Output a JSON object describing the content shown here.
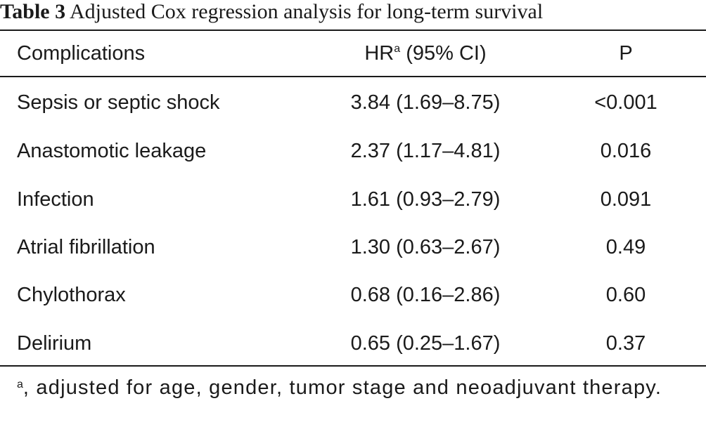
{
  "caption": {
    "label": "Table 3",
    "text": "Adjusted Cox regression analysis for long-term survival"
  },
  "table": {
    "headers": {
      "complications": "Complications",
      "hr": "HR",
      "hr_superscript": "a",
      "hr_suffix": " (95% CI)",
      "p": "P"
    },
    "rows": [
      {
        "complication": "Sepsis or septic shock",
        "hr_ci": "3.84 (1.69–8.75)",
        "p": "<0.001"
      },
      {
        "complication": "Anastomotic leakage",
        "hr_ci": "2.37 (1.17–4.81)",
        "p": "0.016"
      },
      {
        "complication": "Infection",
        "hr_ci": "1.61 (0.93–2.79)",
        "p": "0.091"
      },
      {
        "complication": "Atrial fibrillation",
        "hr_ci": "1.30 (0.63–2.67)",
        "p": "0.49"
      },
      {
        "complication": "Chylothorax",
        "hr_ci": "0.68 (0.16–2.86)",
        "p": "0.60"
      },
      {
        "complication": "Delirium",
        "hr_ci": "0.65 (0.25–1.67)",
        "p": "0.37"
      }
    ]
  },
  "footnote": {
    "marker": "a",
    "text": ", adjusted for age, gender, tumor stage and neoadjuvant therapy."
  }
}
